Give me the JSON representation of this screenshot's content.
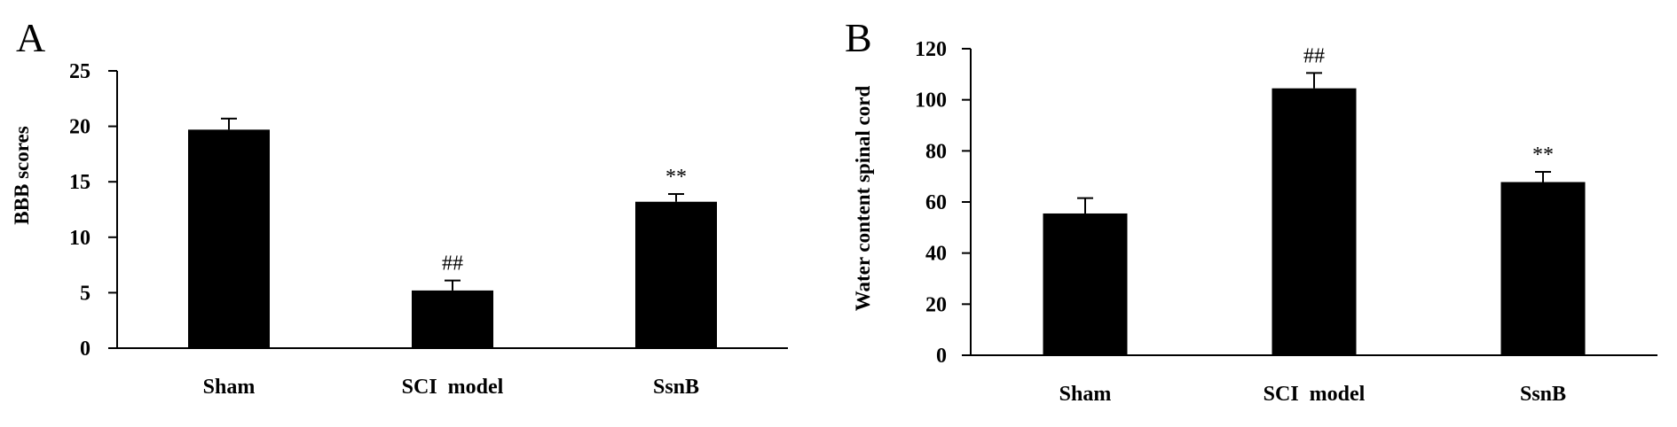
{
  "chart_data": [
    {
      "panel_label": "A",
      "type": "bar",
      "categories": [
        "Sham",
        "SCI  model",
        "SsnB"
      ],
      "values": [
        19.7,
        5.2,
        13.2
      ],
      "errors": [
        1.0,
        0.9,
        0.7
      ],
      "annotations": [
        "",
        "##",
        "**"
      ],
      "ylabel": "BBB scores",
      "xlabel": "",
      "ylim": [
        0,
        25
      ],
      "yticks": [
        0,
        5,
        10,
        15,
        20,
        25
      ],
      "bar_color": "#000000",
      "grid": false
    },
    {
      "panel_label": "B",
      "type": "bar",
      "categories": [
        "Sham",
        "SCI  model",
        "SsnB"
      ],
      "values": [
        55.5,
        104.5,
        67.8
      ],
      "errors": [
        6.0,
        6.0,
        4.0
      ],
      "annotations": [
        "",
        "##",
        "**"
      ],
      "ylabel": "Water content spinal cord",
      "xlabel": "",
      "ylim": [
        0,
        120
      ],
      "yticks": [
        0,
        20,
        40,
        60,
        80,
        100,
        120
      ],
      "bar_color": "#000000",
      "grid": false
    }
  ]
}
